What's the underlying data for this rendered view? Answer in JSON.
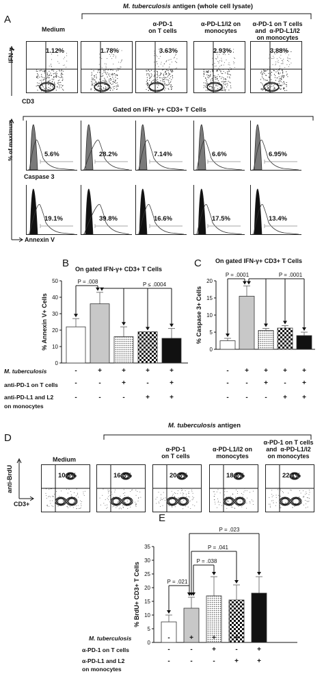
{
  "panel_a": {
    "letter": "A",
    "bracket_label_italic": "M. tuberculosis",
    "bracket_label_rest": " antigen (whole cell lysate)",
    "column_titles": [
      "Medium",
      "",
      "α-PD-1\non T cells",
      "α-PD-L1/l2 on\nmonocytes",
      "α-PD-1 on T cells\nand  α-PD-L1/l2\non monocytes"
    ],
    "ifn_percents": [
      "1.12%",
      "1.78%",
      "3.63%",
      "2.93%",
      "3.88%"
    ],
    "y_axis_label": "IFN-γ",
    "x_axis_label": "CD3",
    "gated_label": "Gated on IFN- γ+ CD3+ T Cells",
    "hist_y_label": "% of  maximum",
    "caspase_percents": [
      "5.6%",
      "28.2%",
      "7.14%",
      "6.6%",
      "6.95%"
    ],
    "caspase_label": "Caspase 3",
    "annexin_percents": [
      "19.1%",
      "39.8%",
      "16.6%",
      "17.5%",
      "13.4%"
    ],
    "annexin_label": "Annexin V"
  },
  "panel_b": {
    "letter": "B",
    "title": "On gated IFN-γ+ CD3+ T Cells",
    "p_labels": [
      "P = .008",
      "P ≤ .0004"
    ]
  },
  "panel_c": {
    "letter": "C",
    "title": "On gated IFN-γ+ CD3+ T Cells",
    "p_labels": [
      "P = .0001",
      "P = .0001"
    ]
  },
  "bc_conditions": {
    "row_labels": [
      "M. tuberculosis",
      "anti-PD-1 on T cells",
      "anti-PD-L1 and L2",
      "on monocytes"
    ],
    "signs_b": [
      [
        "-",
        "+",
        "+",
        "+",
        "+"
      ],
      [
        "-",
        "-",
        "+",
        "-",
        "+"
      ],
      [
        "-",
        "-",
        "-",
        "+",
        "+"
      ]
    ],
    "signs_c": [
      [
        "-",
        "+",
        "+",
        "+",
        "+"
      ],
      [
        "-",
        "-",
        "+",
        "-",
        "+"
      ],
      [
        "-",
        "-",
        "-",
        "+",
        "+"
      ]
    ]
  },
  "panel_d": {
    "letter": "D",
    "bracket_label_italic": "M. tuberculosis",
    "bracket_label_rest": " antigen",
    "column_titles": [
      "Medium",
      "",
      "α-PD-1\non T cells",
      "α-PD-L1/l2 on\nmonocytes",
      "α-PD-1 on T cells\nand  α-PD-L1/l2\non monocytes"
    ],
    "brdu_percents": [
      "10.6%",
      "16.3%",
      "20.3%",
      "18.6%",
      "22.1%"
    ],
    "y_axis_label": "anti-BrdU",
    "x_axis_label": "CD3+"
  },
  "panel_e": {
    "letter": "E",
    "p_labels": [
      "P = .021",
      "P = .038",
      "P = .041",
      "P = .023"
    ]
  },
  "e_conditions": {
    "row_labels": [
      "M. tuberculosis",
      "α-PD-1 on T cells",
      "α-PD-L1 and L2",
      "on monocytes"
    ],
    "signs": [
      [
        "-",
        "+",
        "+",
        "+",
        "+"
      ],
      [
        "-",
        "-",
        "+",
        "-",
        "+"
      ],
      [
        "-",
        "-",
        "-",
        "+",
        "+"
      ]
    ]
  },
  "chart_data": [
    {
      "type": "bar",
      "title": "On gated IFN-γ+ CD3+ T Cells",
      "ylabel": "% Annexin V+ Cells",
      "ylim": [
        0,
        50
      ],
      "yticks": [
        0,
        10,
        20,
        30,
        40,
        50
      ],
      "categories": [
        "Medium",
        "M. tuberculosis",
        "M. tb + anti-PD-1",
        "M. tb + anti-PD-L1/L2",
        "M. tb + both"
      ],
      "values": [
        22,
        36,
        16,
        19,
        15
      ],
      "errors": [
        5,
        7,
        6,
        0,
        6
      ],
      "fills": [
        "white",
        "#c8c8c8",
        "dots",
        "checker",
        "#111111"
      ],
      "annotations": [
        "P = .008",
        "P ≤ .0004"
      ]
    },
    {
      "type": "bar",
      "title": "On gated IFN-γ+ CD3+ T Cells",
      "ylabel": "% Caspase 3+ Cells",
      "ylim": [
        0,
        20
      ],
      "yticks": [
        0,
        5,
        10,
        15,
        20
      ],
      "categories": [
        "Medium",
        "M. tuberculosis",
        "M. tb + anti-PD-1",
        "M. tb + anti-PD-L1/L2",
        "M. tb + both"
      ],
      "values": [
        2.5,
        15.5,
        5.5,
        6.2,
        4.0
      ],
      "errors": [
        0.7,
        3.0,
        0.6,
        0.7,
        1.0
      ],
      "fills": [
        "white",
        "#c8c8c8",
        "dots",
        "checker",
        "#111111"
      ],
      "annotations": [
        "P = .0001",
        "P = .0001"
      ]
    },
    {
      "type": "bar",
      "ylabel": "% BrdU+ CD3+ T Cells",
      "ylim": [
        0,
        35
      ],
      "yticks": [
        0,
        5,
        10,
        15,
        20,
        25,
        30,
        35
      ],
      "categories": [
        "Medium",
        "M. tuberculosis",
        "M. tb + α-PD-1",
        "M. tb + α-PD-L1/L2",
        "M. tb + both"
      ],
      "values": [
        7.5,
        12.5,
        17,
        15.5,
        18
      ],
      "errors": [
        2.5,
        4.0,
        7.0,
        5.5,
        6.0
      ],
      "fills": [
        "white",
        "#c8c8c8",
        "dots",
        "checker",
        "#111111"
      ],
      "annotations": [
        "P = .021",
        "P = .038",
        "P = .041",
        "P = .023"
      ]
    }
  ]
}
